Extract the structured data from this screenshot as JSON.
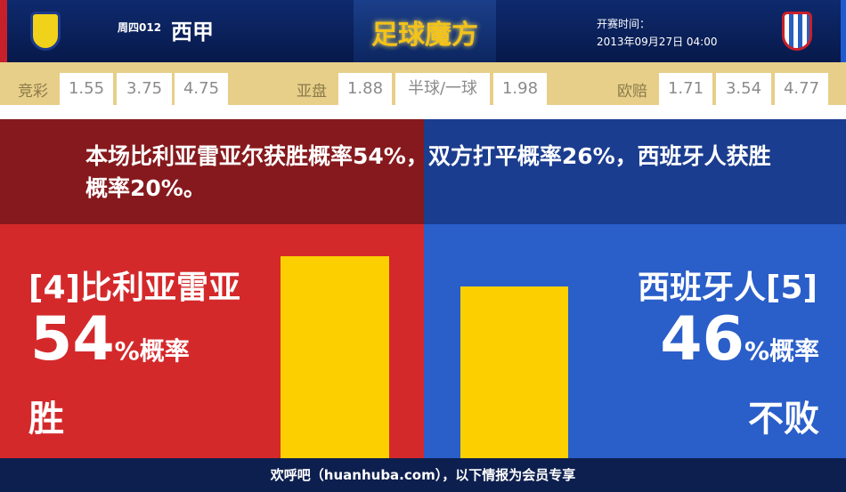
{
  "header": {
    "round": "周四012",
    "league": "西甲",
    "brand": "足球魔方",
    "time_label": "开赛时间：",
    "time_value": "2013年09月27日 04:00"
  },
  "odds": {
    "jingcai": {
      "label": "竞彩",
      "values": [
        "1.55",
        "3.75",
        "4.75"
      ]
    },
    "yapan": {
      "label": "亚盘",
      "values": [
        "1.88",
        "半球/一球",
        "1.98"
      ]
    },
    "oupei": {
      "label": "欧赔",
      "values": [
        "1.71",
        "3.54",
        "4.77"
      ]
    }
  },
  "message": "本场比利亚雷亚尔获胜概率54%，双方打平概率26%，西班牙人获胜概率20%。",
  "home": {
    "name": "[4]比利亚雷亚",
    "pct": 54,
    "pct_text": "54",
    "unit": "%概率",
    "result": "胜",
    "color": "#d4292b"
  },
  "away": {
    "name": "西班牙人[5]",
    "pct": 46,
    "pct_text": "46",
    "unit": "%概率",
    "result": "不败",
    "color": "#2a5ec9"
  },
  "bar_color": "#fcd000",
  "footer": "欢呼吧（huanhuba.com），以下情报为会员专享"
}
